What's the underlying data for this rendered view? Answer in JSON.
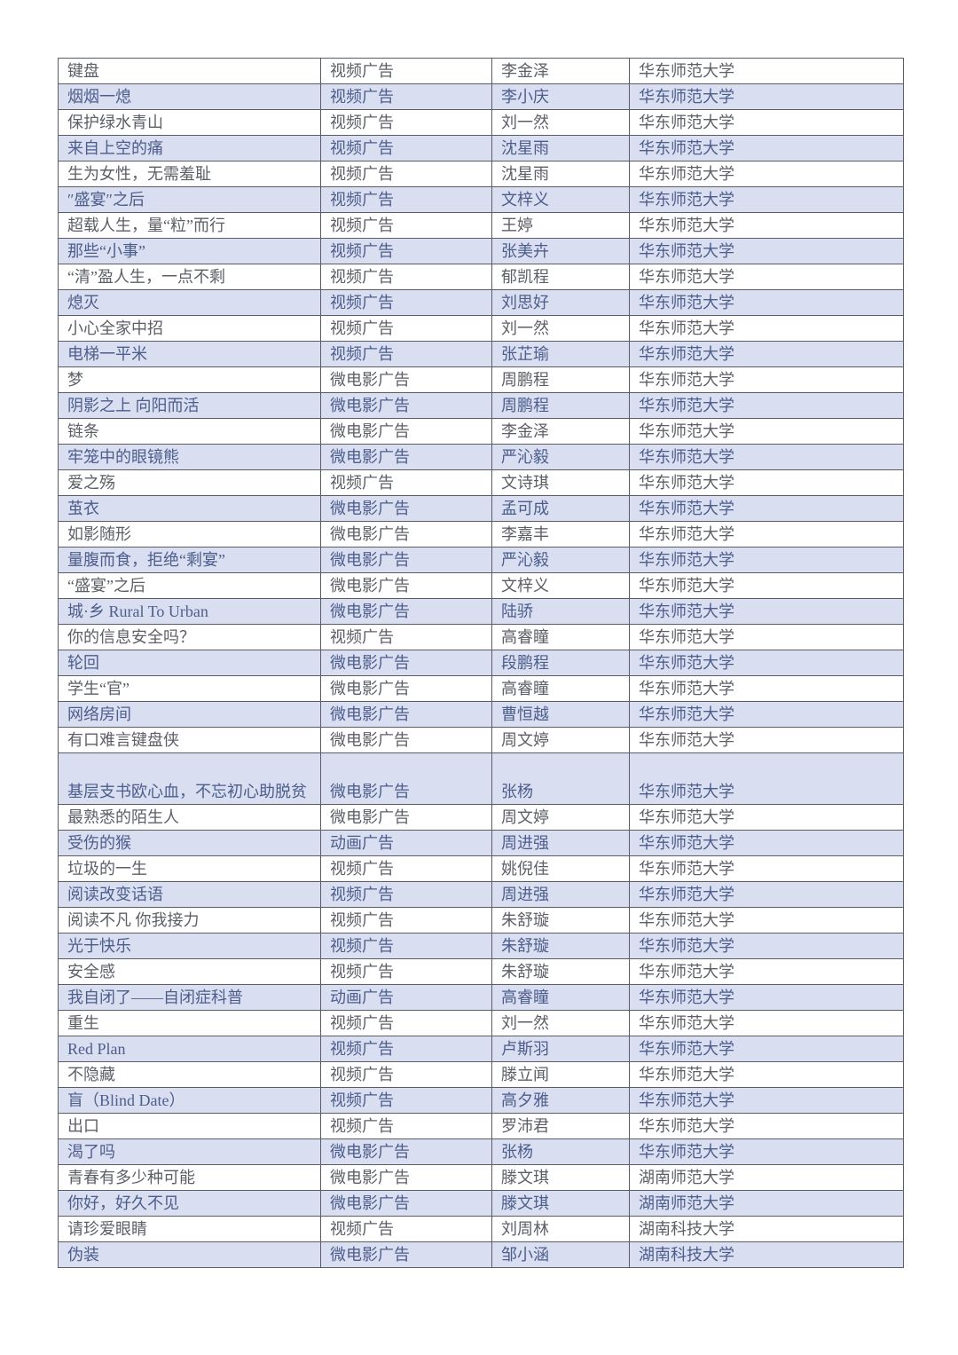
{
  "colors": {
    "band": "#d9dff0",
    "band_text": "#4d5d8c",
    "text": "#5c5f66",
    "border": "#5a5d66"
  },
  "rows": [
    [
      "键盘",
      "视频广告",
      "李金泽",
      "华东师范大学"
    ],
    [
      "烟烟一熄",
      "视频广告",
      "李小庆",
      "华东师范大学"
    ],
    [
      "保护绿水青山",
      "视频广告",
      "刘一然",
      "华东师范大学"
    ],
    [
      "来自上空的痛",
      "视频广告",
      "沈星雨",
      "华东师范大学"
    ],
    [
      "生为女性，无需羞耻",
      "视频广告",
      "沈星雨",
      "华东师范大学"
    ],
    [
      "″盛宴″之后",
      "视频广告",
      "文梓义",
      "华东师范大学"
    ],
    [
      "超载人生，量“粒”而行",
      "视频广告",
      "王婷",
      "华东师范大学"
    ],
    [
      "那些“小事”",
      "视频广告",
      "张美卉",
      "华东师范大学"
    ],
    [
      "“清”盈人生，一点不剩",
      "视频广告",
      "郁凯程",
      "华东师范大学"
    ],
    [
      "熄灭",
      "视频广告",
      "刘思好",
      "华东师范大学"
    ],
    [
      "小心全家中招",
      "视频广告",
      "刘一然",
      "华东师范大学"
    ],
    [
      "电梯一平米",
      "视频广告",
      "张芷瑜",
      "华东师范大学"
    ],
    [
      "梦",
      "微电影广告",
      "周鹏程",
      "华东师范大学"
    ],
    [
      "阴影之上 向阳而活",
      "微电影广告",
      "周鹏程",
      "华东师范大学"
    ],
    [
      "链条",
      "微电影广告",
      "李金泽",
      "华东师范大学"
    ],
    [
      "牢笼中的眼镜熊",
      "微电影广告",
      "严沁毅",
      "华东师范大学"
    ],
    [
      "爱之殇",
      "视频广告",
      "文诗琪",
      "华东师范大学"
    ],
    [
      "茧衣",
      "微电影广告",
      "孟可成",
      "华东师范大学"
    ],
    [
      "如影随形",
      "微电影广告",
      "李嘉丰",
      "华东师范大学"
    ],
    [
      "量腹而食，拒绝“剩宴”",
      "微电影广告",
      "严沁毅",
      "华东师范大学"
    ],
    [
      "“盛宴”之后",
      "微电影广告",
      "文梓义",
      "华东师范大学"
    ],
    [
      "城·乡 Rural To Urban",
      "微电影广告",
      "陆骄",
      "华东师范大学"
    ],
    [
      "你的信息安全吗？",
      "视频广告",
      "高睿瞳",
      "华东师范大学"
    ],
    [
      "轮回",
      "微电影广告",
      "段鹏程",
      "华东师范大学"
    ],
    [
      "学生“官”",
      "微电影广告",
      "高睿瞳",
      "华东师范大学"
    ],
    [
      "网络房间",
      "微电影广告",
      "曹恒越",
      "华东师范大学"
    ],
    [
      "有口难言键盘侠",
      "微电影广告",
      "周文婷",
      "华东师范大学"
    ],
    [
      "基层支书欧心血，不忘初心助脱贫",
      "微电影广告",
      "张杨",
      "华东师范大学"
    ],
    [
      "最熟悉的陌生人",
      "微电影广告",
      "周文婷",
      "华东师范大学"
    ],
    [
      "受伤的猴",
      "动画广告",
      "周进强",
      "华东师范大学"
    ],
    [
      "垃圾的一生",
      "视频广告",
      "姚倪佳",
      "华东师范大学"
    ],
    [
      "阅读改变话语",
      "视频广告",
      "周进强",
      "华东师范大学"
    ],
    [
      "阅读不凡 你我接力",
      "视频广告",
      "朱舒璇",
      "华东师范大学"
    ],
    [
      "光于快乐",
      "视频广告",
      "朱舒璇",
      "华东师范大学"
    ],
    [
      "安全感",
      "视频广告",
      "朱舒璇",
      "华东师范大学"
    ],
    [
      "我自闭了——自闭症科普",
      "动画广告",
      "高睿瞳",
      "华东师范大学"
    ],
    [
      "重生",
      "视频广告",
      "刘一然",
      "华东师范大学"
    ],
    [
      "Red Plan",
      "视频广告",
      "卢斯羽",
      "华东师范大学"
    ],
    [
      "不隐藏",
      "视频广告",
      "滕立闻",
      "华东师范大学"
    ],
    [
      "盲（Blind Date）",
      "视频广告",
      "高夕雅",
      "华东师范大学"
    ],
    [
      "出口",
      "视频广告",
      "罗沛君",
      "华东师范大学"
    ],
    [
      "渴了吗",
      "微电影广告",
      "张杨",
      "华东师范大学"
    ],
    [
      "青春有多少种可能",
      "微电影广告",
      "滕文琪",
      "湖南师范大学"
    ],
    [
      "你好，好久不见",
      "微电影广告",
      "滕文琪",
      "湖南师范大学"
    ],
    [
      "请珍爱眼睛",
      "视频广告",
      "刘周林",
      "湖南科技大学"
    ],
    [
      "伪装",
      "微电影广告",
      "邹小涵",
      "湖南科技大学"
    ]
  ]
}
